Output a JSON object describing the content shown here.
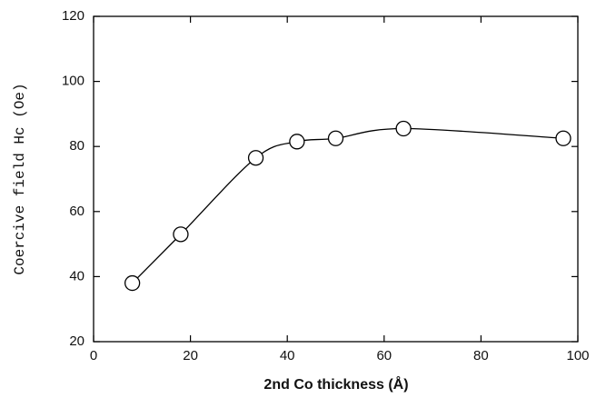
{
  "chart_data": {
    "type": "line",
    "xlabel": "2nd Co thickness (Å)",
    "ylabel": "Coercive field Hc (Oe)",
    "series": [
      {
        "x": [
          8,
          18,
          33.5,
          42,
          50,
          64,
          97
        ],
        "values": [
          38,
          53,
          76.5,
          81.5,
          82.5,
          85.5,
          82.5
        ],
        "color": "#000000",
        "marker": "circle"
      }
    ],
    "xlim": [
      0,
      100
    ],
    "xticks": [
      0,
      20,
      40,
      60,
      80,
      100
    ],
    "ylim": [
      20,
      120
    ],
    "yticks": [
      20,
      40,
      60,
      80,
      100,
      120
    ],
    "smooth": true
  }
}
